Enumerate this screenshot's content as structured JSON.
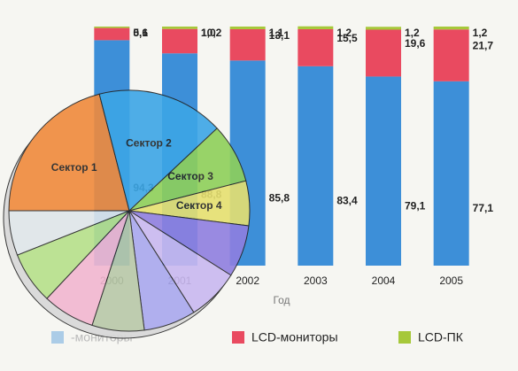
{
  "chart_data": [
    {
      "type": "bar",
      "stacked": true,
      "x_label": "Год",
      "categories": [
        "2000",
        "2001",
        "2002",
        "2003",
        "2004",
        "2005"
      ],
      "series": [
        {
          "name": "-мониторы",
          "color": "#3d8fd8",
          "values": [
            94.3,
            88.8,
            85.8,
            83.4,
            79.1,
            77.1
          ],
          "value_labels": [
            "94,3",
            "88,8",
            "85,8",
            "83,4",
            "79,1",
            "77,1"
          ]
        },
        {
          "name": "LCD-мониторы",
          "color": "#e94a60",
          "values": [
            5.1,
            10.2,
            13.1,
            15.5,
            19.6,
            21.7
          ],
          "value_labels": [
            "5,1",
            "10,2",
            "13,1",
            "15,5",
            "19,6",
            "21,7"
          ]
        },
        {
          "name": "LCD-ПК",
          "color": "#a6c83a",
          "values": [
            0.6,
            1.0,
            1.1,
            1.2,
            1.2,
            1.2
          ],
          "value_labels": [
            "0,6",
            "1,0",
            "1,1",
            "1,2",
            "1,2",
            "1,2"
          ]
        }
      ],
      "ylim": [
        0,
        100
      ],
      "legend": "bottom"
    },
    {
      "type": "pie",
      "categories": [
        "Сектор 1",
        "Сектор 2",
        "Сектор 3",
        "Сектор 4",
        null,
        null,
        null,
        null,
        null,
        null,
        null
      ],
      "values": [
        21,
        17,
        8,
        6,
        7,
        7,
        7,
        7,
        7,
        7,
        6
      ],
      "colors": [
        "#f08a3c",
        "#3ca6e6",
        "#8ed05a",
        "#e6e070",
        "#8f7fe0",
        "#c9b8f0",
        "#a9a8ee",
        "#b8c8a8",
        "#f2b6d0",
        "#b6e08a",
        "#dfe6ea"
      ]
    }
  ]
}
